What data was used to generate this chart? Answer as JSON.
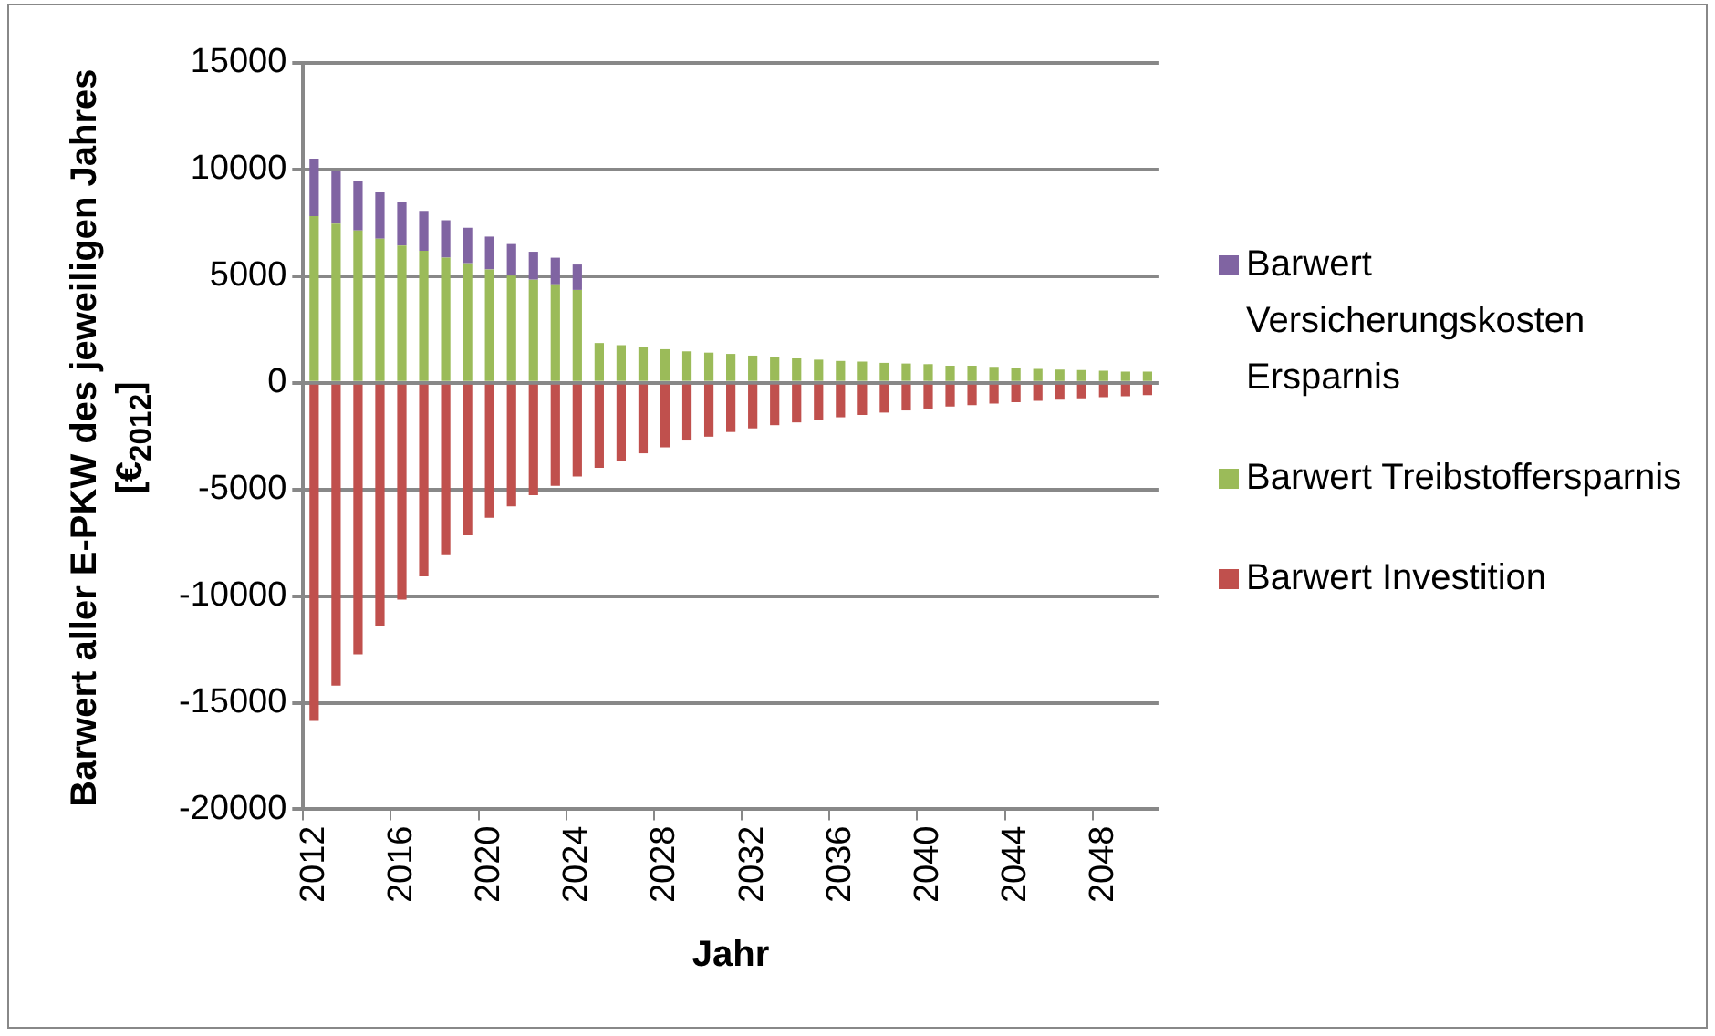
{
  "chart_data": {
    "type": "bar",
    "stacked": true,
    "xlabel": "Jahr",
    "ylabel": "Barwert aller E-PKW des jeweiligen Jahres [€$_{2012}$]",
    "categories": [
      "2012",
      null,
      null,
      null,
      "2016",
      null,
      null,
      null,
      "2020",
      null,
      null,
      null,
      "2024",
      null,
      null,
      null,
      "2028",
      null,
      null,
      null,
      "2032",
      null,
      null,
      null,
      "2036",
      null,
      null,
      null,
      "2040",
      null,
      null,
      null,
      "2044",
      null,
      null,
      null,
      "2048",
      null,
      null
    ],
    "series": [
      {
        "name": "Barwert Investition",
        "color": "#c0504d",
        "values": [
          -15850,
          -14200,
          -12730,
          -11390,
          -10170,
          -9080,
          -8080,
          -7150,
          -6330,
          -5800,
          -5270,
          -4840,
          -4400,
          -3990,
          -3650,
          -3310,
          -3030,
          -2710,
          -2530,
          -2310,
          -2140,
          -1990,
          -1860,
          -1740,
          -1620,
          -1510,
          -1400,
          -1300,
          -1210,
          -1120,
          -1050,
          -980,
          -910,
          -850,
          -790,
          -730,
          -680,
          -630,
          -580
        ]
      },
      {
        "name": "Barwert Treibstoffersparnis",
        "color": "#9bbb59",
        "values": [
          7810,
          7460,
          7140,
          6750,
          6430,
          6180,
          5860,
          5600,
          5310,
          5020,
          4830,
          4610,
          4350,
          1860,
          1760,
          1660,
          1570,
          1470,
          1410,
          1350,
          1270,
          1200,
          1140,
          1080,
          1020,
          990,
          930,
          900,
          870,
          800,
          800,
          740,
          710,
          650,
          620,
          590,
          560,
          520,
          520
        ]
      },
      {
        "name": "Barwert Versicherungskosten Ersparnis",
        "color": "#8064a2",
        "values": [
          2690,
          2490,
          2330,
          2210,
          2050,
          1880,
          1760,
          1660,
          1540,
          1480,
          1310,
          1250,
          1190,
          0,
          0,
          0,
          0,
          0,
          0,
          0,
          0,
          0,
          0,
          0,
          0,
          0,
          0,
          0,
          0,
          0,
          0,
          0,
          0,
          0,
          0,
          0,
          0,
          0,
          0
        ]
      }
    ],
    "ylim": [
      -20000,
      15000
    ],
    "yticks": [
      -20000,
      -15000,
      -10000,
      -5000,
      0,
      5000,
      10000,
      15000
    ],
    "grid": "y",
    "legend": "right"
  }
}
